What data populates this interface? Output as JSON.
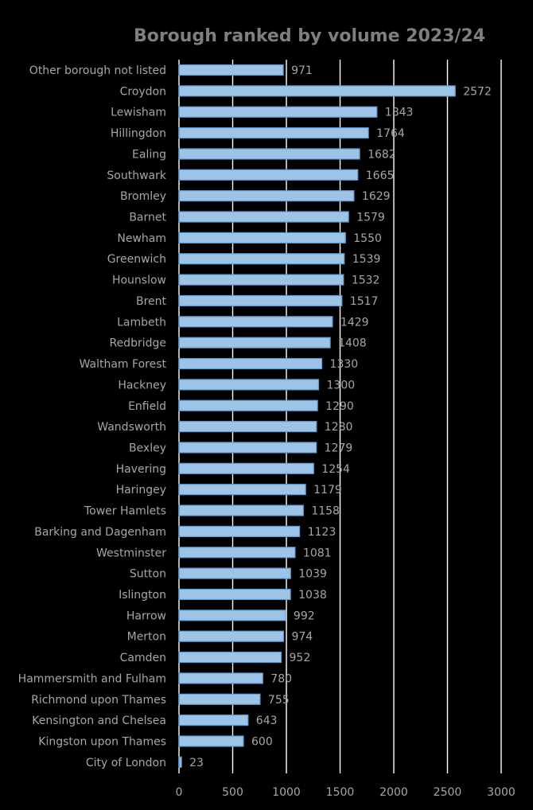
{
  "chart_data": {
    "type": "bar",
    "orientation": "horizontal",
    "title": "Borough ranked by volume 2023/24",
    "categories": [
      "Other borough not listed",
      "Croydon",
      "Lewisham",
      "Hillingdon",
      "Ealing",
      "Southwark",
      "Bromley",
      "Barnet",
      "Newham",
      "Greenwich",
      "Hounslow",
      "Brent",
      "Lambeth",
      "Redbridge",
      "Waltham Forest",
      "Hackney",
      "Enfield",
      "Wandsworth",
      "Bexley",
      "Havering",
      "Haringey",
      "Tower Hamlets",
      "Barking and Dagenham",
      "Westminster",
      "Sutton",
      "Islington",
      "Harrow",
      "Merton",
      "Camden",
      "Hammersmith and Fulham",
      "Richmond upon Thames",
      "Kensington and Chelsea",
      "Kingston upon Thames",
      "City of London"
    ],
    "values": [
      971,
      2572,
      1843,
      1764,
      1682,
      1665,
      1629,
      1579,
      1550,
      1539,
      1532,
      1517,
      1429,
      1408,
      1330,
      1300,
      1290,
      1280,
      1279,
      1254,
      1179,
      1158,
      1123,
      1081,
      1039,
      1038,
      992,
      974,
      952,
      780,
      755,
      643,
      600,
      23
    ],
    "x_ticks": [
      "0",
      "500",
      "1000",
      "1500",
      "2000",
      "2500",
      "3000"
    ],
    "xlim": [
      0,
      3000
    ],
    "grid": true,
    "legend": "none",
    "colors": {
      "background": "#000000",
      "bar_fill": "#9dc3e6",
      "bar_stroke": "#5b9bd5",
      "text": "#a6a6a6",
      "title": "#7f7f7f",
      "gridline": "#ffffff"
    }
  }
}
